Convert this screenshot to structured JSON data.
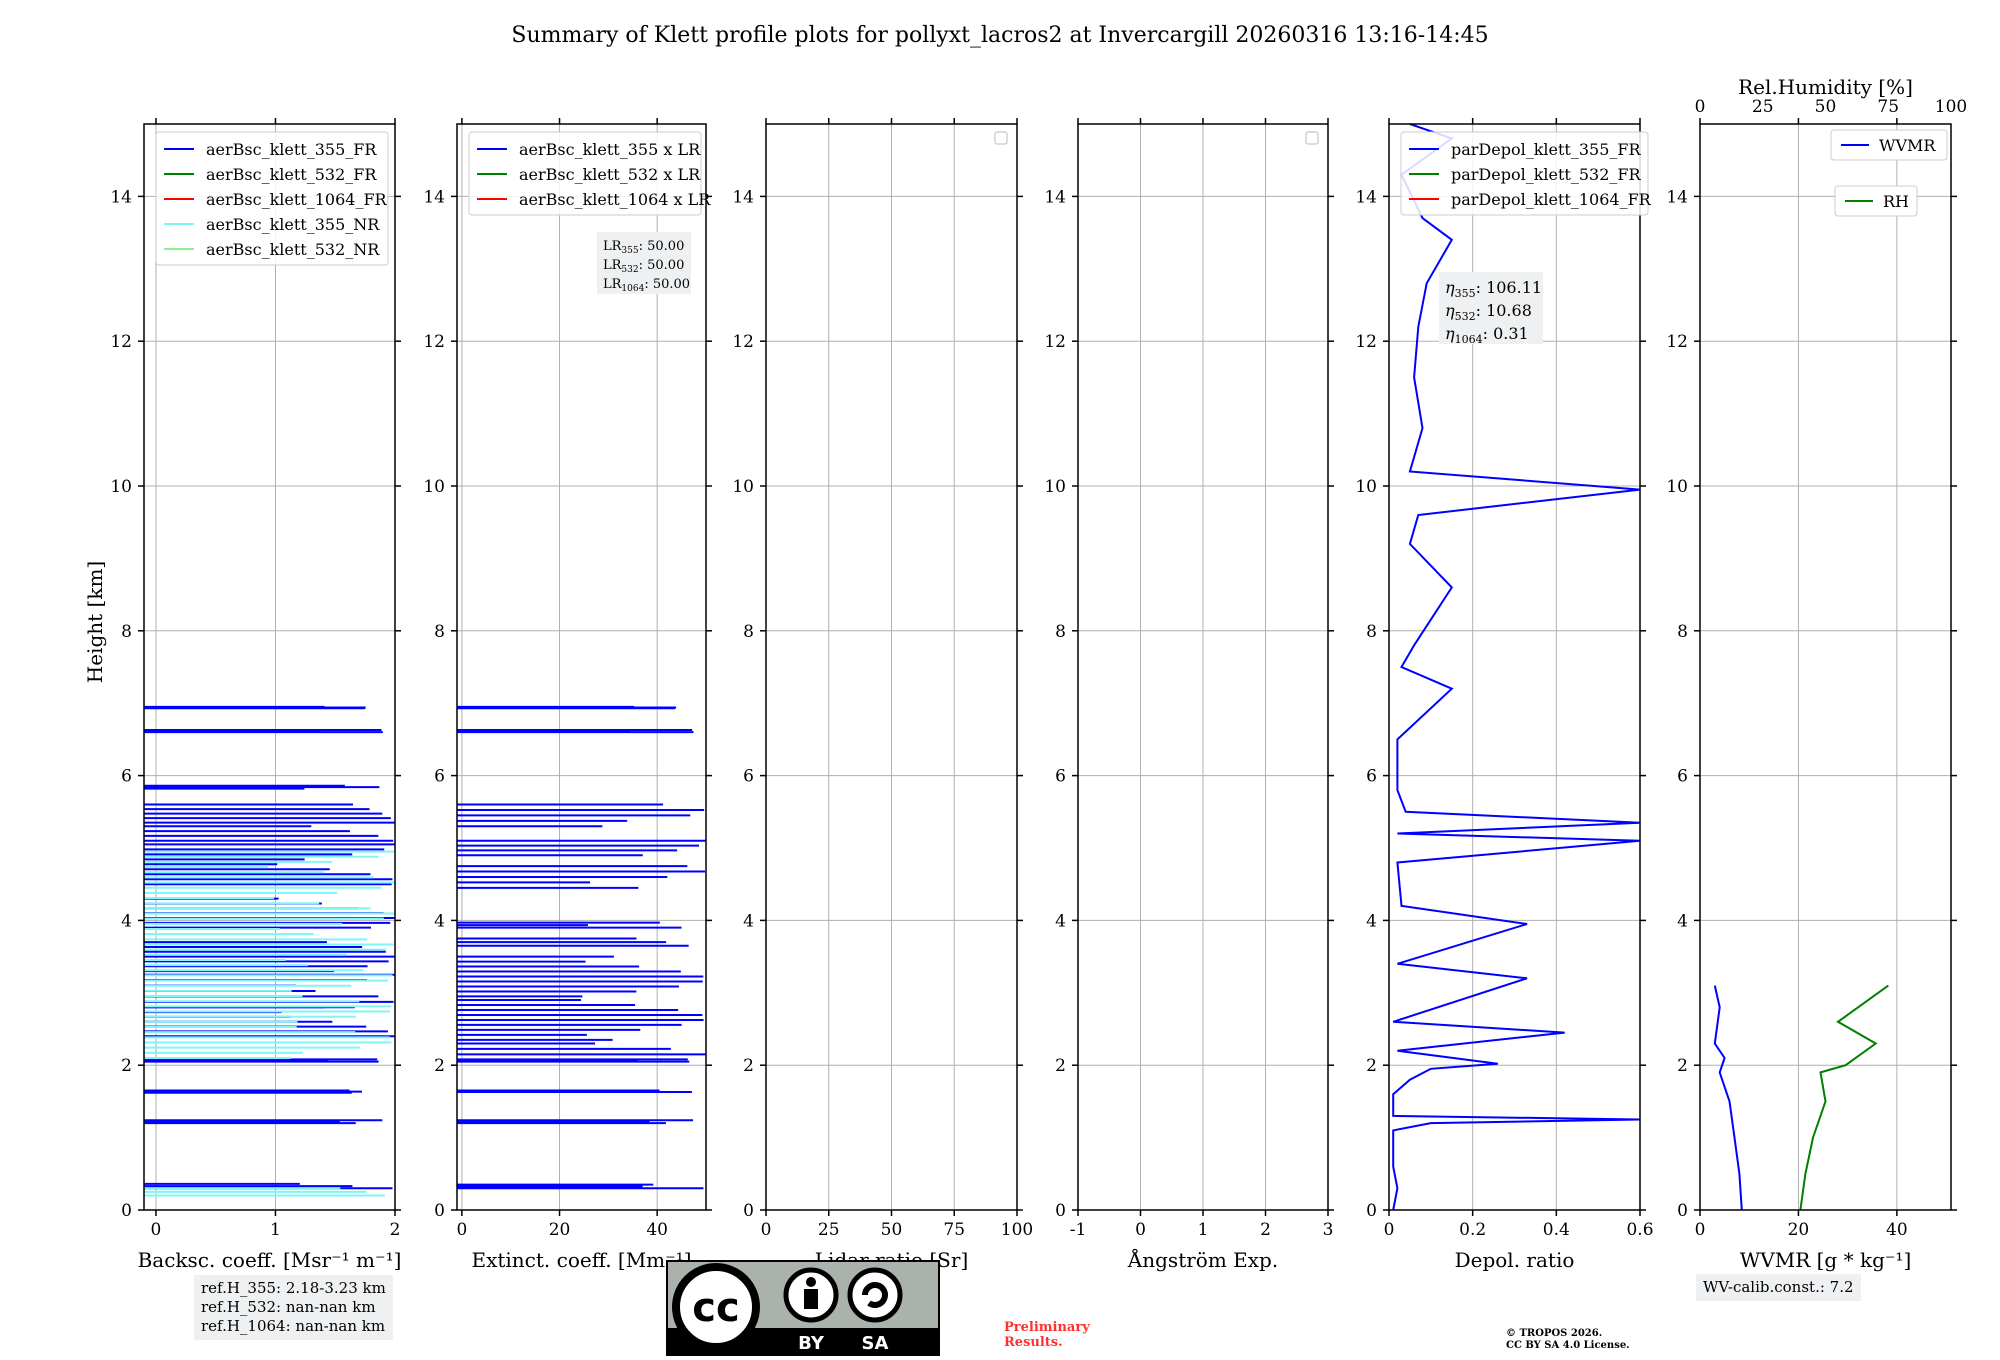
{
  "title": "Summary of Klett profile plots for pollyxt_lacros2 at Invercargill 20260316 13:16-14:45",
  "colors": {
    "blue": "#0000ff",
    "green": "#008000",
    "red": "#ff0000",
    "cyan": "#7ff5f5",
    "lightgreen": "#90ee90",
    "grid": "#b0b0b0"
  },
  "chart_data": [
    {
      "type": "line",
      "name": "backscatter",
      "xlabel": "Backsc. coeff. [Msr⁻¹ m⁻¹]",
      "ylabel": "Height [km]",
      "xlim": [
        -0.1,
        2
      ],
      "ylim": [
        0,
        15
      ],
      "xticks": [
        0,
        1,
        2
      ],
      "yticks": [
        0,
        2,
        4,
        6,
        8,
        10,
        12,
        14
      ],
      "legend": [
        "aerBsc_klett_355_FR",
        "aerBsc_klett_532_FR",
        "aerBsc_klett_1064_FR",
        "aerBsc_klett_355_NR",
        "aerBsc_klett_532_NR"
      ],
      "legend_colors": [
        "blue",
        "green",
        "red",
        "cyan",
        "lightgreen"
      ],
      "series": [
        {
          "name": "aerBsc_klett_355_FR",
          "color": "blue",
          "segments": [
            [
              0.3,
              0.36
            ],
            [
              1.2,
              1.24
            ],
            [
              1.62,
              1.65
            ],
            [
              2.05,
              2.08
            ],
            [
              2.4,
              2.8
            ],
            [
              2.8,
              3.25
            ],
            [
              3.3,
              3.7
            ],
            [
              3.9,
              4.3
            ],
            [
              4.5,
              5.05
            ],
            [
              5.1,
              5.3
            ],
            [
              5.35,
              5.6
            ],
            [
              5.82,
              5.86
            ],
            [
              6.6,
              6.63
            ],
            [
              6.93,
              6.95
            ]
          ],
          "value": 2
        },
        {
          "name": "aerBsc_klett_355_NR",
          "color": "cyan",
          "segments": [
            [
              0.2,
              0.3
            ],
            [
              2.1,
              4.95
            ]
          ],
          "value": 2
        }
      ]
    },
    {
      "type": "line",
      "name": "extinction",
      "xlabel": "Extinct. coeff. [Mm⁻¹]",
      "xlim": [
        -1,
        50
      ],
      "ylim": [
        0,
        15
      ],
      "xticks": [
        0,
        20,
        40
      ],
      "legend": [
        "aerBsc_klett_355 x LR",
        "aerBsc_klett_532 x LR",
        "aerBsc_klett_1064 x LR"
      ],
      "legend_colors": [
        "blue",
        "green",
        "red"
      ],
      "lidar_ratios": {
        "LR355": "50.00",
        "LR532": "50.00",
        "LR1064": "50.00"
      },
      "series": [
        {
          "name": "aerBsc_klett_355 x LR",
          "color": "blue",
          "segments": [
            [
              0.3,
              0.35
            ],
            [
              1.2,
              1.24
            ],
            [
              1.63,
              1.65
            ],
            [
              2.05,
              2.08
            ],
            [
              2.15,
              2.3
            ],
            [
              2.35,
              2.9
            ],
            [
              2.95,
              3.5
            ],
            [
              3.65,
              3.75
            ],
            [
              3.9,
              3.97
            ],
            [
              4.45,
              4.75
            ],
            [
              4.9,
              5.1
            ],
            [
              5.3,
              5.6
            ],
            [
              6.6,
              6.63
            ],
            [
              6.93,
              6.95
            ]
          ],
          "value": 50
        }
      ]
    },
    {
      "type": "line",
      "name": "lidar_ratio",
      "xlabel": "Lidar ratio [Sr]",
      "xlim": [
        0,
        100
      ],
      "ylim": [
        0,
        15
      ],
      "xticks": [
        0,
        25,
        50,
        75,
        100
      ],
      "series": []
    },
    {
      "type": "line",
      "name": "angstrom",
      "xlabel": "Ångström Exp.",
      "xlim": [
        -1,
        3
      ],
      "ylim": [
        0,
        15
      ],
      "xticks": [
        -1,
        0,
        1,
        2,
        3
      ],
      "series": []
    },
    {
      "type": "line",
      "name": "depolarization",
      "xlabel": "Depol. ratio",
      "xlim": [
        0,
        0.6
      ],
      "ylim": [
        0,
        15
      ],
      "xticks": [
        0.0,
        0.2,
        0.4,
        0.6
      ],
      "legend": [
        "parDepol_klett_355_FR",
        "parDepol_klett_532_FR",
        "parDepol_klett_1064_FR"
      ],
      "legend_colors": [
        "blue",
        "green",
        "red"
      ],
      "angstrom_labels": {
        "eta355": "106.11",
        "eta532": "10.68",
        "eta1064": "0.31"
      },
      "series": [
        {
          "name": "parDepol_klett_355_FR",
          "color": "blue",
          "points": [
            [
              0.01,
              0
            ],
            [
              0.02,
              0.3
            ],
            [
              0.01,
              0.6
            ],
            [
              0.01,
              1.1
            ],
            [
              0.1,
              1.2
            ],
            [
              0.6,
              1.25
            ],
            [
              0.01,
              1.3
            ],
            [
              0.01,
              1.6
            ],
            [
              0.05,
              1.8
            ],
            [
              0.1,
              1.95
            ],
            [
              0.26,
              2.02
            ],
            [
              0.02,
              2.2
            ],
            [
              0.42,
              2.45
            ],
            [
              0.01,
              2.6
            ],
            [
              0.33,
              3.2
            ],
            [
              0.02,
              3.4
            ],
            [
              0.33,
              3.95
            ],
            [
              0.03,
              4.2
            ],
            [
              0.02,
              4.8
            ],
            [
              0.6,
              5.1
            ],
            [
              0.02,
              5.2
            ],
            [
              0.6,
              5.35
            ],
            [
              0.04,
              5.5
            ],
            [
              0.02,
              5.8
            ],
            [
              0.02,
              6.5
            ],
            [
              0.15,
              7.2
            ],
            [
              0.03,
              7.5
            ],
            [
              0.06,
              7.8
            ],
            [
              0.15,
              8.6
            ],
            [
              0.05,
              9.2
            ],
            [
              0.07,
              9.6
            ],
            [
              0.6,
              9.95
            ],
            [
              0.05,
              10.2
            ],
            [
              0.08,
              10.8
            ],
            [
              0.06,
              11.5
            ],
            [
              0.07,
              12.2
            ],
            [
              0.09,
              12.8
            ],
            [
              0.15,
              13.4
            ],
            [
              0.08,
              13.7
            ],
            [
              0.03,
              14.3
            ],
            [
              0.15,
              14.8
            ],
            [
              0.05,
              15
            ]
          ]
        }
      ]
    },
    {
      "type": "line",
      "name": "wvmr_rh",
      "xlabel": "WVMR [g * kg⁻¹]",
      "x2label": "Rel.Humidity [%]",
      "xlim": [
        0,
        51
      ],
      "x2lim": [
        0,
        100
      ],
      "ylim": [
        0,
        15
      ],
      "xticks": [
        0,
        20,
        40
      ],
      "x2ticks": [
        0,
        25,
        50,
        75,
        100
      ],
      "legend": [
        "WVMR",
        "RH"
      ],
      "legend_colors": [
        "blue",
        "green"
      ],
      "series": [
        {
          "name": "WVMR",
          "color": "blue",
          "points": [
            [
              8.5,
              0
            ],
            [
              8,
              0.5
            ],
            [
              7,
              1
            ],
            [
              6,
              1.5
            ],
            [
              4,
              1.9
            ],
            [
              5,
              2.1
            ],
            [
              3,
              2.3
            ],
            [
              4,
              2.8
            ],
            [
              3,
              3.1
            ]
          ]
        },
        {
          "name": "RH",
          "color": "green",
          "axis": "x2",
          "points": [
            [
              40,
              0
            ],
            [
              42,
              0.5
            ],
            [
              45,
              1
            ],
            [
              50,
              1.5
            ],
            [
              48,
              1.9
            ],
            [
              58,
              2.0
            ],
            [
              70,
              2.3
            ],
            [
              55,
              2.6
            ],
            [
              75,
              3.1
            ]
          ]
        }
      ]
    }
  ],
  "annotations": {
    "ref_h_355": "ref.H_355: 2.18-3.23 km",
    "ref_h_532": "ref.H_532: nan-nan km",
    "ref_h_1064": "ref.H_1064: nan-nan km",
    "wv_calib": "WV-calib.const.: 7.2",
    "preliminary": "Preliminary Results.",
    "copyright_1": "© TROPOS 2026.",
    "copyright_2": "CC BY SA 4.0 License.",
    "cc_by": "BY",
    "cc_sa": "SA"
  }
}
